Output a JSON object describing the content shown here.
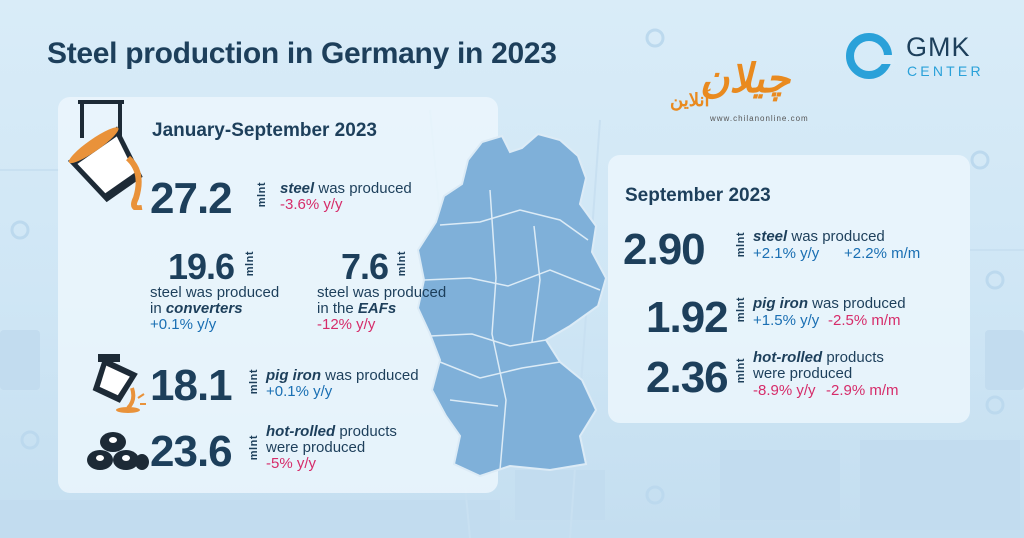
{
  "title": "Steel production in Germany in 2023",
  "logo": {
    "name": "GMK",
    "subtitle": "CENTER"
  },
  "watermark": {
    "brand": "چیلان",
    "small": "آنلاین",
    "url": "www.chilanonline.com"
  },
  "unit": "mlnt",
  "ytd": {
    "heading": "January-September 2023",
    "steel": {
      "value": "27.2",
      "label_em": "steel",
      "label": " was produced",
      "change": "-3.6% y/y"
    },
    "converters": {
      "value": "19.6",
      "line1": "steel was produced",
      "line2_pre": "in ",
      "line2_em": "converters",
      "change": "+0.1% y/y"
    },
    "eaf": {
      "value": "7.6",
      "line1": "steel was produced",
      "line2_pre": "in the ",
      "line2_em": "EAFs",
      "change": "-12% y/y"
    },
    "pig_iron": {
      "value": "18.1",
      "label_em": "pig iron",
      "label": " was produced",
      "change": "+0.1% y/y"
    },
    "hot_rolled": {
      "value": "23.6",
      "label_em": "hot-rolled",
      "label": " products",
      "line2": "were produced",
      "change": "-5% y/y"
    }
  },
  "month": {
    "heading": "September 2023",
    "steel": {
      "value": "2.90",
      "label_em": "steel",
      "label": " was produced",
      "yy": "+2.1% y/y",
      "mm": "+2.2% m/m"
    },
    "pig_iron": {
      "value": "1.92",
      "label_em": "pig iron",
      "label": " was produced",
      "yy": "+1.5% y/y",
      "mm": "-2.5% m/m"
    },
    "hot_rolled": {
      "value": "2.36",
      "label_em": "hot-rolled",
      "label": " products",
      "line2": "were produced",
      "yy": "-8.9% y/y",
      "mm": "-2.9% m/m"
    }
  },
  "colors": {
    "title": "#1d3f5b",
    "accent": "#2aa1d9",
    "positive": "#1a6fb3",
    "negative": "#d62c6a",
    "map": "#7fb0d9"
  }
}
